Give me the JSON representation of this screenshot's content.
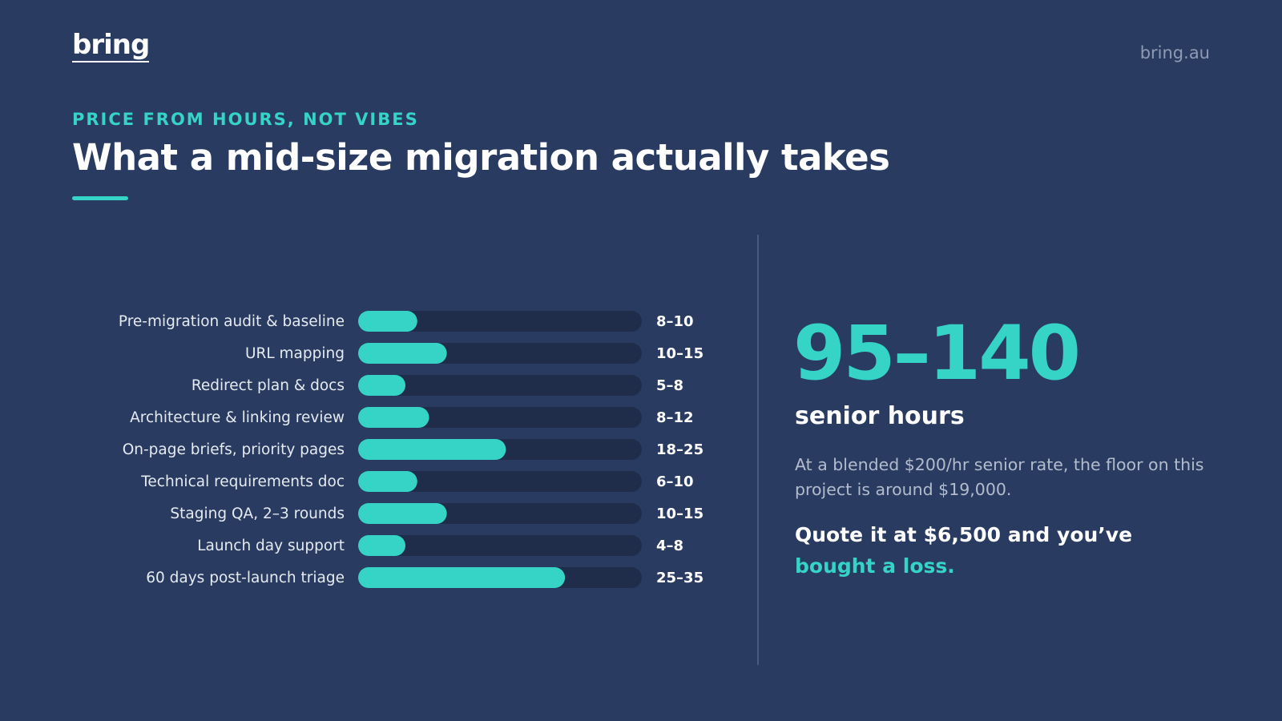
{
  "brand": {
    "logo": "bring",
    "site": "bring.au"
  },
  "header": {
    "eyebrow": "PRICE FROM HOURS, NOT VIBES",
    "title": "What a mid-size migration actually takes"
  },
  "colors": {
    "background": "#293b61",
    "accent": "#36d3c7",
    "track": "#1f2d4a"
  },
  "chart_data": {
    "type": "bar",
    "orientation": "horizontal",
    "categories": [
      "Pre-migration audit & baseline",
      "URL mapping",
      "Redirect plan & docs",
      "Architecture & linking review",
      "On-page briefs, priority pages",
      "Technical requirements doc",
      "Staging QA, 2–3 rounds",
      "Launch day support",
      "60 days post-launch triage"
    ],
    "value_labels": [
      "8–10",
      "10–15",
      "5–8",
      "8–12",
      "18–25",
      "6–10",
      "10–15",
      "4–8",
      "25–35"
    ],
    "ranges": [
      [
        8,
        10
      ],
      [
        10,
        15
      ],
      [
        5,
        8
      ],
      [
        8,
        12
      ],
      [
        18,
        25
      ],
      [
        6,
        10
      ],
      [
        10,
        15
      ],
      [
        4,
        8
      ],
      [
        25,
        35
      ]
    ],
    "values": [
      10,
      15,
      8,
      12,
      25,
      10,
      15,
      8,
      35
    ],
    "xlim": [
      0,
      48
    ],
    "grid": false,
    "legend": "none"
  },
  "summary": {
    "big_number": "95–140",
    "unit": "senior hours",
    "paragraph": "At a blended $200/hr senior rate, the floor on this project is around $19,000.",
    "quote_prefix": "Quote it at $6,500 and you’ve ",
    "quote_highlight": "bought a loss."
  }
}
